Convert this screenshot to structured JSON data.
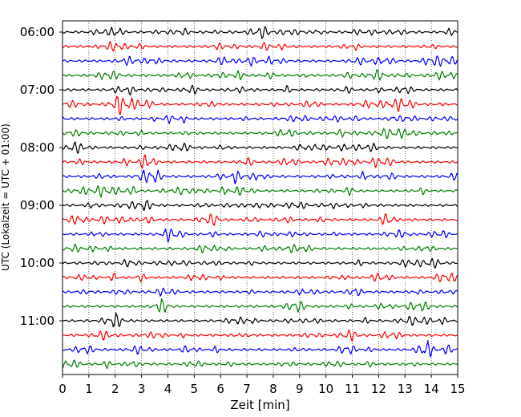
{
  "chart_data": {
    "type": "line",
    "title": "",
    "xlabel": "Zeit  [min]",
    "ylabel": "UTC (Lokalzeit = UTC + 01:00)",
    "xlim": [
      0,
      15
    ],
    "x_ticks": [
      0,
      1,
      2,
      3,
      4,
      5,
      6,
      7,
      8,
      9,
      10,
      11,
      12,
      13,
      14,
      15
    ],
    "y_tick_labels": [
      "06:00",
      "07:00",
      "08:00",
      "09:00",
      "10:00",
      "11:00"
    ],
    "trace_interval_minutes": 15,
    "traces_start": "06:00",
    "trace_count": 24,
    "color_cycle": [
      "#000000",
      "#ff0000",
      "#0000ff",
      "#007f00"
    ],
    "grid": "vertical dotted lines at each minute",
    "legend": "none"
  }
}
